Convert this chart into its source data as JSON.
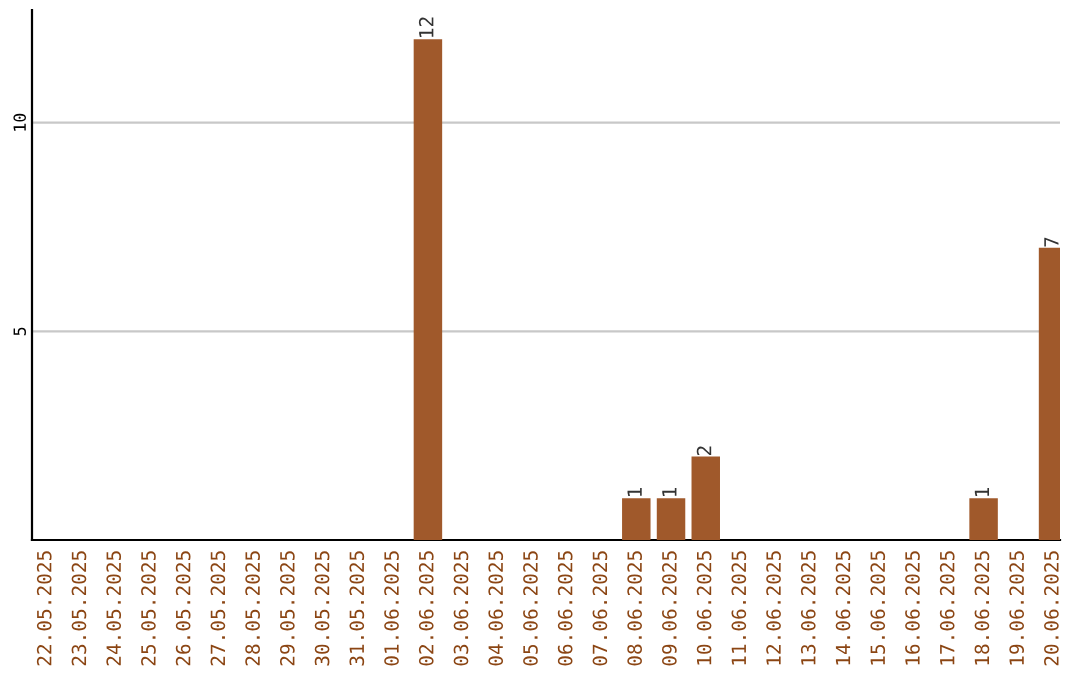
{
  "chart_data": {
    "type": "bar",
    "categories": [
      "22.05.2025",
      "23.05.2025",
      "24.05.2025",
      "25.05.2025",
      "26.05.2025",
      "27.05.2025",
      "28.05.2025",
      "29.05.2025",
      "30.05.2025",
      "31.05.2025",
      "01.06.2025",
      "02.06.2025",
      "03.06.2025",
      "04.06.2025",
      "05.06.2025",
      "06.06.2025",
      "07.06.2025",
      "08.06.2025",
      "09.06.2025",
      "10.06.2025",
      "11.06.2025",
      "12.06.2025",
      "13.06.2025",
      "14.06.2025",
      "15.06.2025",
      "16.06.2025",
      "17.06.2025",
      "18.06.2025",
      "19.06.2025",
      "20.06.2025"
    ],
    "values": [
      0,
      0,
      0,
      0,
      0,
      0,
      0,
      0,
      0,
      0,
      0,
      12,
      0,
      0,
      0,
      0,
      0,
      1,
      1,
      2,
      0,
      0,
      0,
      0,
      0,
      0,
      0,
      1,
      0,
      7
    ],
    "value_labels": [
      null,
      null,
      null,
      null,
      null,
      null,
      null,
      null,
      null,
      null,
      null,
      "12",
      null,
      null,
      null,
      null,
      null,
      "1",
      "1",
      "2",
      null,
      null,
      null,
      null,
      null,
      null,
      null,
      "1",
      null,
      "7"
    ],
    "color": "#a0592b",
    "ylim": [
      0,
      12.7
    ],
    "yticks": [
      5,
      10
    ],
    "grid": "y"
  }
}
